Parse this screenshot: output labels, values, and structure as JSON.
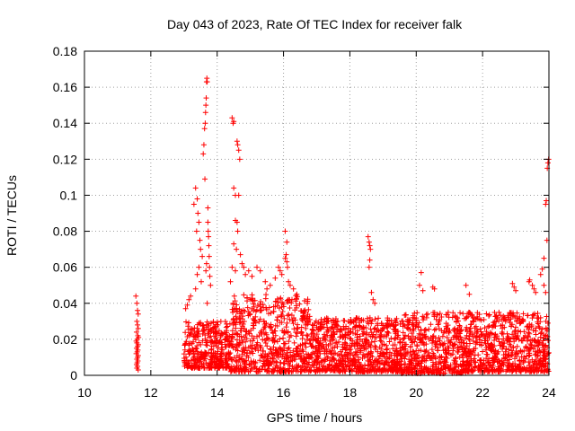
{
  "chart_data": {
    "type": "scatter",
    "title": "Day 043 of 2023, Rate Of TEC Index for receiver falk",
    "xlabel": "GPS time / hours",
    "ylabel": "ROTI / TECUs",
    "xlim": [
      10,
      24
    ],
    "ylim": [
      0,
      0.18
    ],
    "xticks": [
      10,
      12,
      14,
      16,
      18,
      20,
      22,
      24
    ],
    "yticks": [
      0,
      0.02,
      0.04,
      0.06,
      0.08,
      0.1,
      0.12,
      0.14,
      0.16,
      0.18
    ],
    "xtick_labels": [
      "10",
      "12",
      "14",
      "16",
      "18",
      "20",
      "22",
      "24"
    ],
    "ytick_labels": [
      "0",
      "0.02",
      "0.04",
      "0.06",
      "0.08",
      "0.1",
      "0.12",
      "0.14",
      "0.16",
      "0.18"
    ],
    "grid": true,
    "marker": "+",
    "color": "#ff0000",
    "series": [
      {
        "points": [
          [
            11.55,
            0.044
          ],
          [
            11.58,
            0.04
          ],
          [
            11.6,
            0.036
          ],
          [
            11.62,
            0.034
          ],
          [
            11.58,
            0.03
          ],
          [
            11.6,
            0.028
          ],
          [
            11.62,
            0.026
          ],
          [
            11.57,
            0.024
          ],
          [
            11.61,
            0.022
          ],
          [
            11.59,
            0.02
          ],
          [
            11.58,
            0.018
          ],
          [
            11.62,
            0.017
          ],
          [
            11.6,
            0.016
          ],
          [
            11.57,
            0.015
          ],
          [
            11.61,
            0.014
          ],
          [
            11.59,
            0.013
          ],
          [
            11.56,
            0.012
          ],
          [
            11.62,
            0.011
          ],
          [
            11.6,
            0.01
          ],
          [
            11.58,
            0.009
          ],
          [
            11.61,
            0.008
          ],
          [
            11.59,
            0.007
          ],
          [
            11.57,
            0.006
          ],
          [
            11.6,
            0.005
          ],
          [
            11.58,
            0.004
          ],
          [
            11.62,
            0.003
          ],
          [
            11.56,
            0.019
          ],
          [
            11.63,
            0.021
          ],
          [
            13.05,
            0.037
          ],
          [
            13.1,
            0.039
          ],
          [
            13.15,
            0.042
          ],
          [
            13.2,
            0.044
          ],
          [
            13.3,
            0.095
          ],
          [
            13.35,
            0.104
          ],
          [
            13.4,
            0.098
          ],
          [
            13.42,
            0.09
          ],
          [
            13.45,
            0.085
          ],
          [
            13.38,
            0.08
          ],
          [
            13.48,
            0.075
          ],
          [
            13.5,
            0.07
          ],
          [
            13.55,
            0.066
          ],
          [
            13.58,
            0.123
          ],
          [
            13.6,
            0.128
          ],
          [
            13.62,
            0.137
          ],
          [
            13.64,
            0.14
          ],
          [
            13.65,
            0.146
          ],
          [
            13.66,
            0.15
          ],
          [
            13.67,
            0.154
          ],
          [
            13.68,
            0.163
          ],
          [
            13.69,
            0.165
          ],
          [
            13.7,
            0.163
          ],
          [
            13.63,
            0.109
          ],
          [
            13.72,
            0.093
          ],
          [
            13.73,
            0.08
          ],
          [
            13.74,
            0.077
          ],
          [
            13.75,
            0.072
          ],
          [
            13.76,
            0.066
          ],
          [
            13.77,
            0.06
          ],
          [
            13.78,
            0.055
          ],
          [
            13.8,
            0.05
          ],
          [
            13.7,
            0.04
          ],
          [
            13.66,
            0.058
          ],
          [
            13.68,
            0.062
          ],
          [
            13.72,
            0.085
          ],
          [
            13.4,
            0.056
          ],
          [
            13.45,
            0.06
          ],
          [
            13.52,
            0.052
          ],
          [
            13.35,
            0.048
          ],
          [
            14.45,
            0.143
          ],
          [
            14.48,
            0.14
          ],
          [
            14.5,
            0.141
          ],
          [
            14.6,
            0.13
          ],
          [
            14.62,
            0.128
          ],
          [
            14.65,
            0.125
          ],
          [
            14.68,
            0.12
          ],
          [
            14.5,
            0.104
          ],
          [
            14.55,
            0.1
          ],
          [
            14.65,
            0.1
          ],
          [
            14.55,
            0.086
          ],
          [
            14.6,
            0.085
          ],
          [
            14.62,
            0.08
          ],
          [
            14.5,
            0.073
          ],
          [
            14.58,
            0.07
          ],
          [
            14.7,
            0.067
          ],
          [
            14.45,
            0.06
          ],
          [
            14.55,
            0.058
          ],
          [
            14.75,
            0.062
          ],
          [
            14.8,
            0.06
          ],
          [
            14.4,
            0.052
          ],
          [
            14.85,
            0.056
          ],
          [
            14.95,
            0.058
          ],
          [
            15.05,
            0.055
          ],
          [
            15.2,
            0.06
          ],
          [
            15.3,
            0.058
          ],
          [
            15.45,
            0.052
          ],
          [
            15.5,
            0.048
          ],
          [
            15.6,
            0.05
          ],
          [
            15.75,
            0.054
          ],
          [
            15.85,
            0.06
          ],
          [
            15.9,
            0.058
          ],
          [
            15.95,
            0.056
          ],
          [
            16.05,
            0.065
          ],
          [
            16.08,
            0.067
          ],
          [
            16.1,
            0.063
          ],
          [
            16.12,
            0.06
          ],
          [
            16.05,
            0.08
          ],
          [
            16.1,
            0.074
          ],
          [
            16.15,
            0.052
          ],
          [
            16.2,
            0.05
          ],
          [
            16.3,
            0.048
          ],
          [
            16.4,
            0.045
          ],
          [
            16.15,
            0.042
          ],
          [
            18.55,
            0.077
          ],
          [
            18.58,
            0.074
          ],
          [
            18.6,
            0.072
          ],
          [
            18.62,
            0.07
          ],
          [
            18.6,
            0.064
          ],
          [
            18.58,
            0.06
          ],
          [
            18.65,
            0.046
          ],
          [
            18.7,
            0.042
          ],
          [
            18.75,
            0.04
          ],
          [
            20.15,
            0.057
          ],
          [
            20.1,
            0.05
          ],
          [
            20.2,
            0.047
          ],
          [
            20.5,
            0.049
          ],
          [
            20.55,
            0.048
          ],
          [
            21.5,
            0.05
          ],
          [
            21.6,
            0.045
          ],
          [
            22.9,
            0.051
          ],
          [
            22.95,
            0.049
          ],
          [
            23.0,
            0.047
          ],
          [
            23.4,
            0.052
          ],
          [
            23.42,
            0.053
          ],
          [
            23.5,
            0.05
          ],
          [
            23.55,
            0.048
          ],
          [
            23.6,
            0.046
          ],
          [
            23.75,
            0.056
          ],
          [
            23.8,
            0.059
          ],
          [
            23.85,
            0.065
          ],
          [
            23.9,
            0.095
          ],
          [
            23.92,
            0.097
          ],
          [
            23.95,
            0.115
          ],
          [
            23.97,
            0.118
          ],
          [
            23.99,
            0.12
          ],
          [
            23.94,
            0.075
          ],
          [
            23.85,
            0.05
          ],
          [
            23.9,
            0.046
          ]
        ]
      }
    ],
    "dense_bands": [
      {
        "x": [
          13.0,
          14.4
        ],
        "y": [
          0.004,
          0.03
        ]
      },
      {
        "x": [
          14.4,
          16.8
        ],
        "y": [
          0.002,
          0.045
        ]
      },
      {
        "x": [
          16.8,
          19.5
        ],
        "y": [
          0.002,
          0.032
        ]
      },
      {
        "x": [
          19.5,
          21.5
        ],
        "y": [
          0.001,
          0.035
        ]
      },
      {
        "x": [
          21.5,
          24.0
        ],
        "y": [
          0.002,
          0.035
        ]
      }
    ]
  }
}
